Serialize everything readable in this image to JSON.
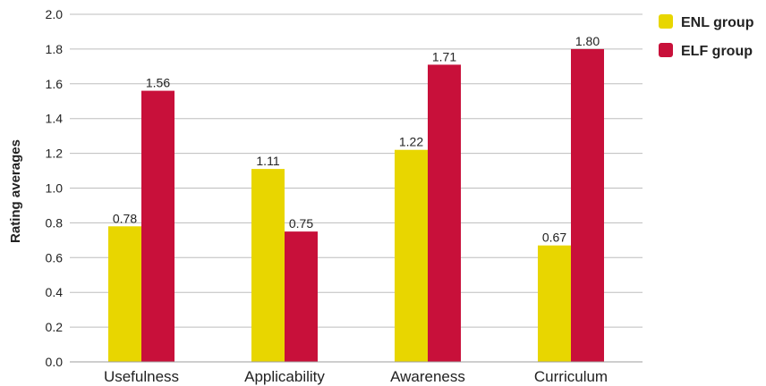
{
  "chart_data": {
    "type": "bar",
    "categories": [
      "Usefulness",
      "Applicability",
      "Awareness",
      "Curriculum"
    ],
    "series": [
      {
        "name": "ENL group",
        "color": "#e8d600",
        "values": [
          0.78,
          1.11,
          1.22,
          0.67
        ],
        "labels": [
          "0.78",
          "1.11",
          "1.22",
          "0.67"
        ]
      },
      {
        "name": "ELF group",
        "color": "#c8103a",
        "values": [
          1.56,
          0.75,
          1.71,
          1.8
        ],
        "labels": [
          "1.56",
          "0.75",
          "1.71",
          "1.80"
        ]
      }
    ],
    "ylabel": "Rating averages",
    "xlabel": "",
    "ylim": [
      0,
      2.0
    ],
    "yticks": [
      "0.0",
      "0.2",
      "0.4",
      "0.6",
      "0.8",
      "1.0",
      "1.2",
      "1.4",
      "1.6",
      "1.8",
      "2.0"
    ],
    "grid": true,
    "legend_position": "top-right"
  }
}
